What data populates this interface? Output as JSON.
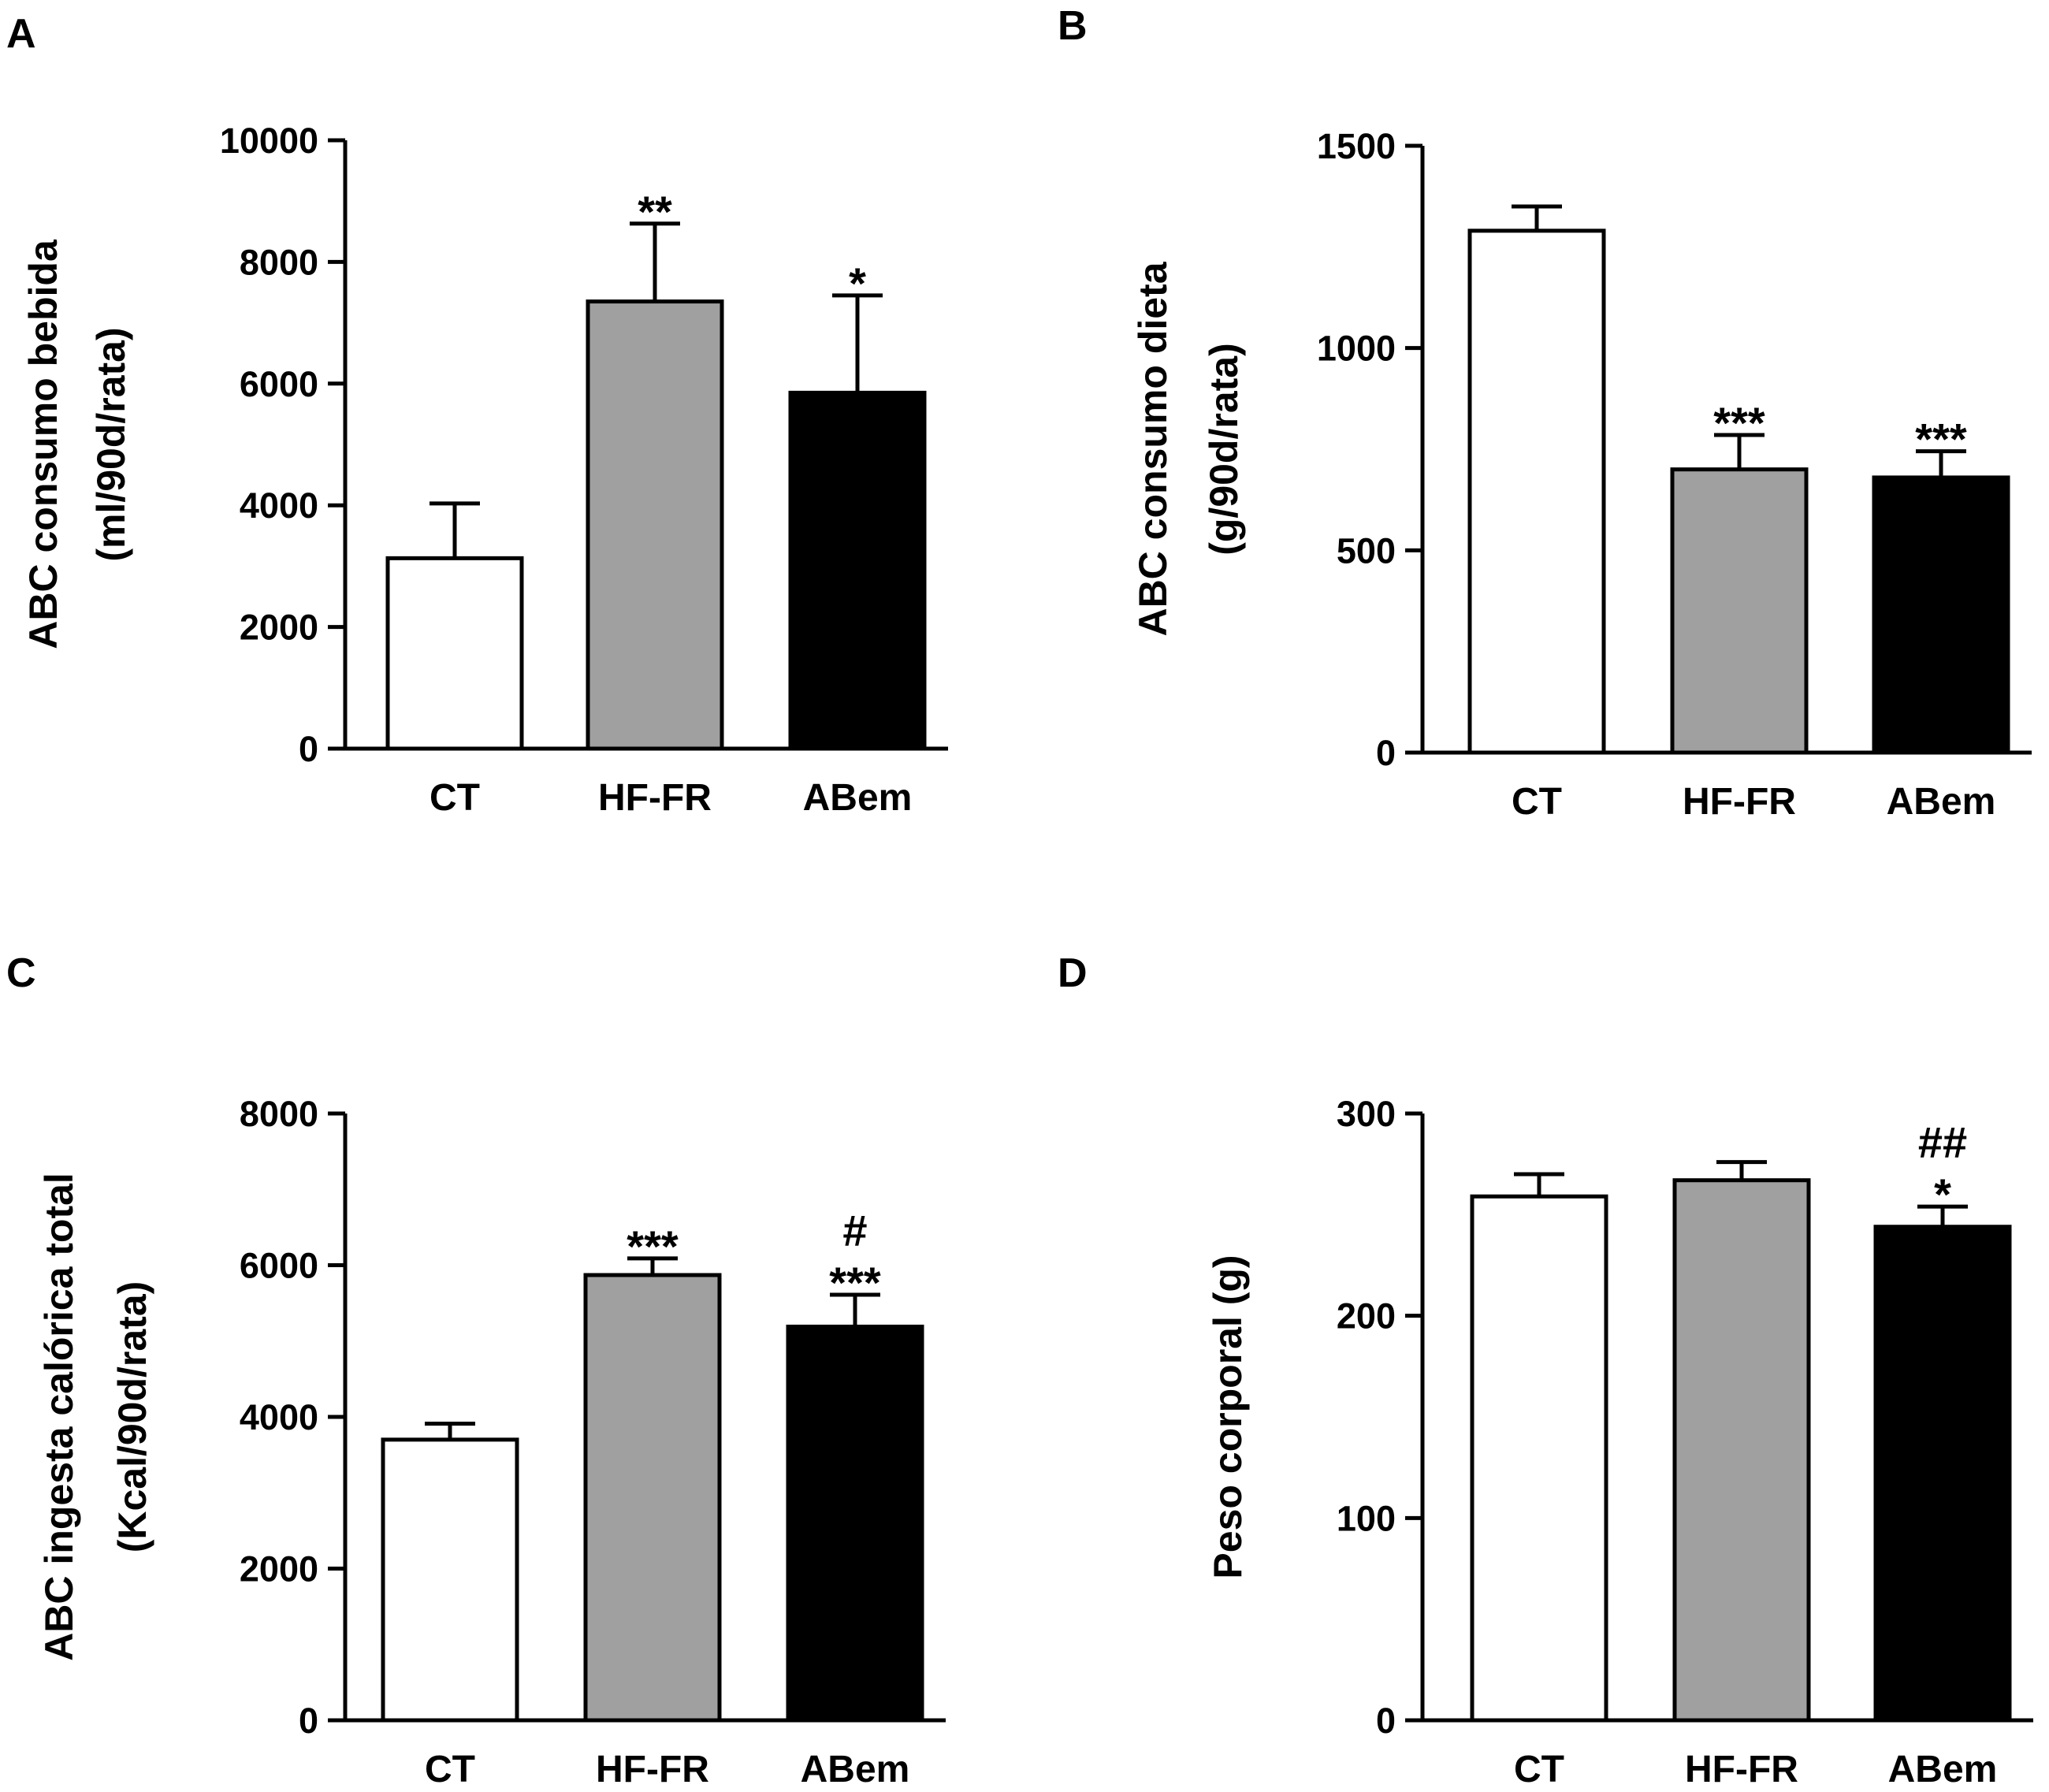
{
  "colors": {
    "CT": "#ffffff",
    "HF-FR": "#a0a0a0",
    "ABem": "#000000",
    "stroke": "#000000"
  },
  "chart_data": [
    {
      "panel": "A",
      "type": "bar",
      "ylabel": [
        "ABC consumo bebida",
        "(ml/90d/rata)"
      ],
      "categories": [
        "CT",
        "HF-FR",
        "ABem"
      ],
      "values": [
        3130,
        7350,
        5850
      ],
      "errors": [
        900,
        1280,
        1600
      ],
      "annotations": [
        [],
        [
          "**"
        ],
        [
          "*"
        ]
      ],
      "ylim": [
        0,
        10000
      ],
      "yticks": [
        0,
        2000,
        4000,
        6000,
        8000,
        10000
      ],
      "ytick_labels": [
        "0",
        "2000",
        "4000",
        "6000",
        "8000",
        "10000"
      ]
    },
    {
      "panel": "B",
      "type": "bar",
      "ylabel": [
        "ABC consumo dieta",
        "(g/90d/rata)"
      ],
      "categories": [
        "CT",
        "HF-FR",
        "ABem"
      ],
      "values": [
        1290,
        700,
        680
      ],
      "errors": [
        60,
        85,
        65
      ],
      "annotations": [
        [],
        [
          "***"
        ],
        [
          "***"
        ]
      ],
      "ylim": [
        0,
        1500
      ],
      "yticks": [
        0,
        500,
        1000,
        1500
      ],
      "ytick_labels": [
        "0",
        "500",
        "1000",
        "1500"
      ]
    },
    {
      "panel": "C",
      "type": "bar",
      "ylabel": [
        "ABC ingesta calórica total",
        "(Kcal/90d/rata)"
      ],
      "categories": [
        "CT",
        "HF-FR",
        "ABem"
      ],
      "values": [
        3700,
        5870,
        5190
      ],
      "errors": [
        210,
        220,
        420
      ],
      "annotations": [
        [],
        [
          "***"
        ],
        [
          "***",
          "#"
        ]
      ],
      "ylim": [
        0,
        8000
      ],
      "yticks": [
        0,
        2000,
        4000,
        6000,
        8000
      ],
      "ytick_labels": [
        "0",
        "2000",
        "4000",
        "6000",
        "8000"
      ]
    },
    {
      "panel": "D",
      "type": "bar",
      "ylabel": [
        "Peso corporal (g)"
      ],
      "categories": [
        "CT",
        "HF-FR",
        "ABem"
      ],
      "values": [
        259,
        267,
        244
      ],
      "errors": [
        11,
        9,
        10
      ],
      "annotations": [
        [],
        [],
        [
          "*",
          "##"
        ]
      ],
      "ylim": [
        0,
        300
      ],
      "yticks": [
        0,
        100,
        200,
        300
      ],
      "ytick_labels": [
        "0",
        "100",
        "200",
        "300"
      ]
    }
  ]
}
